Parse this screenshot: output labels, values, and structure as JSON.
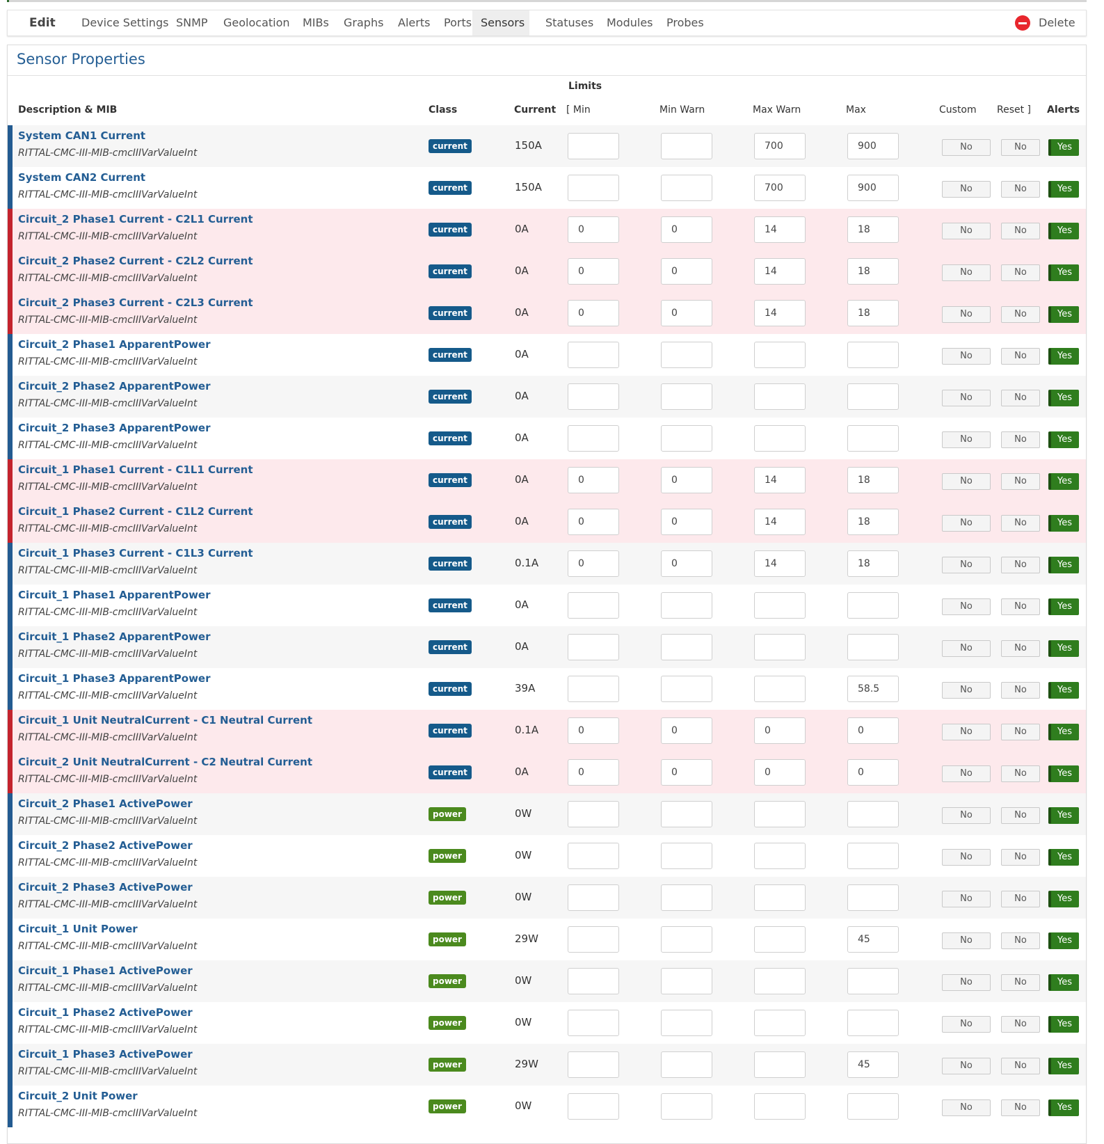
{
  "nav": {
    "brand": "Edit",
    "tabs": [
      "Device Settings",
      "SNMP",
      "Geolocation",
      "MIBs",
      "Graphs",
      "Alerts",
      "Ports",
      "Sensors",
      "Statuses",
      "Modules",
      "Probes"
    ],
    "active_tab": "Sensors",
    "delete_label": "Delete"
  },
  "panel": {
    "title": "Sensor Properties",
    "headers": {
      "limits": "Limits",
      "description": "Description & MIB",
      "class": "Class",
      "current": "Current",
      "min": "[ Min",
      "min_warn": "Min Warn",
      "max_warn": "Max Warn",
      "max": "Max",
      "custom": "Custom",
      "reset": "Reset ]",
      "alerts": "Alerts"
    }
  },
  "toggle_labels": {
    "no": "No",
    "yes": "Yes"
  },
  "colors": {
    "current_badge": "#155a8a",
    "power_badge": "#4b8a1e",
    "alarm_row": "#fde9ec",
    "yes_toggle": "#2f7d1e"
  },
  "sensors": [
    {
      "desc": "System CAN1 Current",
      "mib": "RITTAL-CMC-III-MIB-cmcIIIVarValueInt",
      "class": "current",
      "current": "150A",
      "min": "",
      "min_warn": "",
      "max_warn": "700",
      "max": "900",
      "alarm": false
    },
    {
      "desc": "System CAN2 Current",
      "mib": "RITTAL-CMC-III-MIB-cmcIIIVarValueInt",
      "class": "current",
      "current": "150A",
      "min": "",
      "min_warn": "",
      "max_warn": "700",
      "max": "900",
      "alarm": false
    },
    {
      "desc": "Circuit_2 Phase1 Current - C2L1 Current",
      "mib": "RITTAL-CMC-III-MIB-cmcIIIVarValueInt",
      "class": "current",
      "current": "0A",
      "min": "0",
      "min_warn": "0",
      "max_warn": "14",
      "max": "18",
      "alarm": true
    },
    {
      "desc": "Circuit_2 Phase2 Current - C2L2 Current",
      "mib": "RITTAL-CMC-III-MIB-cmcIIIVarValueInt",
      "class": "current",
      "current": "0A",
      "min": "0",
      "min_warn": "0",
      "max_warn": "14",
      "max": "18",
      "alarm": true
    },
    {
      "desc": "Circuit_2 Phase3 Current - C2L3 Current",
      "mib": "RITTAL-CMC-III-MIB-cmcIIIVarValueInt",
      "class": "current",
      "current": "0A",
      "min": "0",
      "min_warn": "0",
      "max_warn": "14",
      "max": "18",
      "alarm": true
    },
    {
      "desc": "Circuit_2 Phase1 ApparentPower",
      "mib": "RITTAL-CMC-III-MIB-cmcIIIVarValueInt",
      "class": "current",
      "current": "0A",
      "min": "",
      "min_warn": "",
      "max_warn": "",
      "max": "",
      "alarm": false
    },
    {
      "desc": "Circuit_2 Phase2 ApparentPower",
      "mib": "RITTAL-CMC-III-MIB-cmcIIIVarValueInt",
      "class": "current",
      "current": "0A",
      "min": "",
      "min_warn": "",
      "max_warn": "",
      "max": "",
      "alarm": false
    },
    {
      "desc": "Circuit_2 Phase3 ApparentPower",
      "mib": "RITTAL-CMC-III-MIB-cmcIIIVarValueInt",
      "class": "current",
      "current": "0A",
      "min": "",
      "min_warn": "",
      "max_warn": "",
      "max": "",
      "alarm": false
    },
    {
      "desc": "Circuit_1 Phase1 Current - C1L1 Current",
      "mib": "RITTAL-CMC-III-MIB-cmcIIIVarValueInt",
      "class": "current",
      "current": "0A",
      "min": "0",
      "min_warn": "0",
      "max_warn": "14",
      "max": "18",
      "alarm": true
    },
    {
      "desc": "Circuit_1 Phase2 Current - C1L2 Current",
      "mib": "RITTAL-CMC-III-MIB-cmcIIIVarValueInt",
      "class": "current",
      "current": "0A",
      "min": "0",
      "min_warn": "0",
      "max_warn": "14",
      "max": "18",
      "alarm": true
    },
    {
      "desc": "Circuit_1 Phase3 Current - C1L3 Current",
      "mib": "RITTAL-CMC-III-MIB-cmcIIIVarValueInt",
      "class": "current",
      "current": "0.1A",
      "min": "0",
      "min_warn": "0",
      "max_warn": "14",
      "max": "18",
      "alarm": false
    },
    {
      "desc": "Circuit_1 Phase1 ApparentPower",
      "mib": "RITTAL-CMC-III-MIB-cmcIIIVarValueInt",
      "class": "current",
      "current": "0A",
      "min": "",
      "min_warn": "",
      "max_warn": "",
      "max": "",
      "alarm": false
    },
    {
      "desc": "Circuit_1 Phase2 ApparentPower",
      "mib": "RITTAL-CMC-III-MIB-cmcIIIVarValueInt",
      "class": "current",
      "current": "0A",
      "min": "",
      "min_warn": "",
      "max_warn": "",
      "max": "",
      "alarm": false
    },
    {
      "desc": "Circuit_1 Phase3 ApparentPower",
      "mib": "RITTAL-CMC-III-MIB-cmcIIIVarValueInt",
      "class": "current",
      "current": "39A",
      "min": "",
      "min_warn": "",
      "max_warn": "",
      "max": "58.5",
      "alarm": false
    },
    {
      "desc": "Circuit_1 Unit NeutralCurrent - C1 Neutral Current",
      "mib": "RITTAL-CMC-III-MIB-cmcIIIVarValueInt",
      "class": "current",
      "current": "0.1A",
      "min": "0",
      "min_warn": "0",
      "max_warn": "0",
      "max": "0",
      "alarm": true
    },
    {
      "desc": "Circuit_2 Unit NeutralCurrent - C2 Neutral Current",
      "mib": "RITTAL-CMC-III-MIB-cmcIIIVarValueInt",
      "class": "current",
      "current": "0A",
      "min": "0",
      "min_warn": "0",
      "max_warn": "0",
      "max": "0",
      "alarm": true
    },
    {
      "desc": "Circuit_2 Phase1 ActivePower",
      "mib": "RITTAL-CMC-III-MIB-cmcIIIVarValueInt",
      "class": "power",
      "current": "0W",
      "min": "",
      "min_warn": "",
      "max_warn": "",
      "max": "",
      "alarm": false
    },
    {
      "desc": "Circuit_2 Phase2 ActivePower",
      "mib": "RITTAL-CMC-III-MIB-cmcIIIVarValueInt",
      "class": "power",
      "current": "0W",
      "min": "",
      "min_warn": "",
      "max_warn": "",
      "max": "",
      "alarm": false
    },
    {
      "desc": "Circuit_2 Phase3 ActivePower",
      "mib": "RITTAL-CMC-III-MIB-cmcIIIVarValueInt",
      "class": "power",
      "current": "0W",
      "min": "",
      "min_warn": "",
      "max_warn": "",
      "max": "",
      "alarm": false
    },
    {
      "desc": "Circuit_1 Unit Power",
      "mib": "RITTAL-CMC-III-MIB-cmcIIIVarValueInt",
      "class": "power",
      "current": "29W",
      "min": "",
      "min_warn": "",
      "max_warn": "",
      "max": "45",
      "alarm": false
    },
    {
      "desc": "Circuit_1 Phase1 ActivePower",
      "mib": "RITTAL-CMC-III-MIB-cmcIIIVarValueInt",
      "class": "power",
      "current": "0W",
      "min": "",
      "min_warn": "",
      "max_warn": "",
      "max": "",
      "alarm": false
    },
    {
      "desc": "Circuit_1 Phase2 ActivePower",
      "mib": "RITTAL-CMC-III-MIB-cmcIIIVarValueInt",
      "class": "power",
      "current": "0W",
      "min": "",
      "min_warn": "",
      "max_warn": "",
      "max": "",
      "alarm": false
    },
    {
      "desc": "Circuit_1 Phase3 ActivePower",
      "mib": "RITTAL-CMC-III-MIB-cmcIIIVarValueInt",
      "class": "power",
      "current": "29W",
      "min": "",
      "min_warn": "",
      "max_warn": "",
      "max": "45",
      "alarm": false
    },
    {
      "desc": "Circuit_2 Unit Power",
      "mib": "RITTAL-CMC-III-MIB-cmcIIIVarValueInt",
      "class": "power",
      "current": "0W",
      "min": "",
      "min_warn": "",
      "max_warn": "",
      "max": "",
      "alarm": false
    }
  ]
}
